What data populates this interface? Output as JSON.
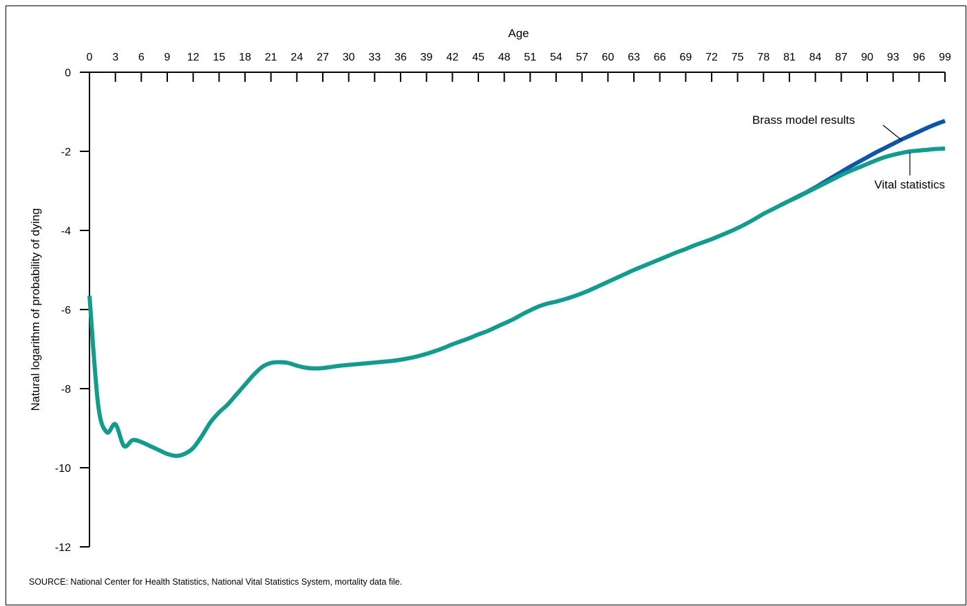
{
  "source_note": "SOURCE: National Center for Health Statistics, National Vital Statistics System, mortality data file.",
  "colors": {
    "brass": "#0d56a6",
    "vital": "#139b8e",
    "axis": "#000000"
  },
  "chart_data": {
    "type": "line",
    "title": "",
    "xlabel": "Age",
    "ylabel": "Natural logarithm of probability of dying",
    "x_axis_position": "top",
    "xlim": [
      0,
      99
    ],
    "ylim": [
      -12,
      0
    ],
    "x_ticks": [
      0,
      3,
      6,
      9,
      12,
      15,
      18,
      21,
      24,
      27,
      30,
      33,
      36,
      39,
      42,
      45,
      48,
      51,
      54,
      57,
      60,
      63,
      66,
      69,
      72,
      75,
      78,
      81,
      84,
      87,
      90,
      93,
      96,
      99
    ],
    "x_tick_labels": [
      "0",
      "3",
      "6",
      "9",
      "12",
      "15",
      "18",
      "21",
      "24",
      "27",
      "30",
      "33",
      "36",
      "39",
      "42",
      "45",
      "48",
      "51",
      "54",
      "57",
      "60",
      "63",
      "66",
      "69",
      "72",
      "75",
      "78",
      "81",
      "84",
      "87",
      "90",
      "93",
      "96",
      "99"
    ],
    "y_ticks": [
      0,
      -2,
      -4,
      -6,
      -8,
      -10,
      -12
    ],
    "y_tick_labels": [
      "0",
      "-2",
      "-4",
      "-6",
      "-8",
      "-10",
      "-12"
    ],
    "grid": false,
    "series": [
      {
        "name": "Vital statistics",
        "color": "#139b8e",
        "points": [
          [
            0,
            -5.65
          ],
          [
            1,
            -8.4
          ],
          [
            2,
            -9.1
          ],
          [
            3,
            -8.9
          ],
          [
            4,
            -9.45
          ],
          [
            5,
            -9.3
          ],
          [
            6,
            -9.35
          ],
          [
            7,
            -9.45
          ],
          [
            8,
            -9.55
          ],
          [
            9,
            -9.65
          ],
          [
            10,
            -9.7
          ],
          [
            11,
            -9.65
          ],
          [
            12,
            -9.5
          ],
          [
            13,
            -9.2
          ],
          [
            14,
            -8.85
          ],
          [
            15,
            -8.6
          ],
          [
            16,
            -8.4
          ],
          [
            17,
            -8.15
          ],
          [
            18,
            -7.9
          ],
          [
            19,
            -7.65
          ],
          [
            20,
            -7.45
          ],
          [
            21,
            -7.35
          ],
          [
            22,
            -7.33
          ],
          [
            23,
            -7.35
          ],
          [
            24,
            -7.42
          ],
          [
            25,
            -7.47
          ],
          [
            26,
            -7.49
          ],
          [
            27,
            -7.48
          ],
          [
            28,
            -7.45
          ],
          [
            29,
            -7.42
          ],
          [
            30,
            -7.4
          ],
          [
            31,
            -7.38
          ],
          [
            32,
            -7.36
          ],
          [
            33,
            -7.34
          ],
          [
            34,
            -7.32
          ],
          [
            35,
            -7.3
          ],
          [
            36,
            -7.27
          ],
          [
            37,
            -7.23
          ],
          [
            38,
            -7.18
          ],
          [
            39,
            -7.12
          ],
          [
            40,
            -7.05
          ],
          [
            41,
            -6.97
          ],
          [
            42,
            -6.88
          ],
          [
            43,
            -6.8
          ],
          [
            44,
            -6.72
          ],
          [
            45,
            -6.63
          ],
          [
            46,
            -6.55
          ],
          [
            47,
            -6.45
          ],
          [
            48,
            -6.35
          ],
          [
            49,
            -6.25
          ],
          [
            50,
            -6.13
          ],
          [
            51,
            -6.02
          ],
          [
            52,
            -5.92
          ],
          [
            53,
            -5.85
          ],
          [
            54,
            -5.8
          ],
          [
            55,
            -5.74
          ],
          [
            56,
            -5.67
          ],
          [
            57,
            -5.59
          ],
          [
            58,
            -5.5
          ],
          [
            59,
            -5.4
          ],
          [
            60,
            -5.3
          ],
          [
            61,
            -5.2
          ],
          [
            62,
            -5.1
          ],
          [
            63,
            -5.0
          ],
          [
            64,
            -4.91
          ],
          [
            65,
            -4.82
          ],
          [
            66,
            -4.73
          ],
          [
            67,
            -4.64
          ],
          [
            68,
            -4.55
          ],
          [
            69,
            -4.47
          ],
          [
            70,
            -4.38
          ],
          [
            71,
            -4.3
          ],
          [
            72,
            -4.22
          ],
          [
            73,
            -4.13
          ],
          [
            74,
            -4.04
          ],
          [
            75,
            -3.94
          ],
          [
            76,
            -3.83
          ],
          [
            77,
            -3.71
          ],
          [
            78,
            -3.58
          ],
          [
            79,
            -3.47
          ],
          [
            80,
            -3.36
          ],
          [
            81,
            -3.25
          ],
          [
            82,
            -3.15
          ],
          [
            83,
            -3.04
          ],
          [
            84,
            -2.93
          ],
          [
            85,
            -2.82
          ],
          [
            86,
            -2.71
          ],
          [
            87,
            -2.6
          ],
          [
            88,
            -2.5
          ],
          [
            89,
            -2.41
          ],
          [
            90,
            -2.32
          ],
          [
            91,
            -2.23
          ],
          [
            92,
            -2.15
          ],
          [
            93,
            -2.09
          ],
          [
            94,
            -2.04
          ],
          [
            95,
            -2.0
          ],
          [
            96,
            -1.98
          ],
          [
            97,
            -1.96
          ],
          [
            98,
            -1.94
          ],
          [
            99,
            -1.93
          ]
        ]
      },
      {
        "name": "Brass model results",
        "color": "#0d56a6",
        "points": [
          [
            80,
            -3.36
          ],
          [
            81,
            -3.25
          ],
          [
            82,
            -3.14
          ],
          [
            83,
            -3.03
          ],
          [
            84,
            -2.91
          ],
          [
            85,
            -2.78
          ],
          [
            86,
            -2.65
          ],
          [
            87,
            -2.52
          ],
          [
            88,
            -2.39
          ],
          [
            89,
            -2.27
          ],
          [
            90,
            -2.15
          ],
          [
            91,
            -2.03
          ],
          [
            92,
            -1.92
          ],
          [
            93,
            -1.81
          ],
          [
            94,
            -1.7
          ],
          [
            95,
            -1.6
          ],
          [
            96,
            -1.5
          ],
          [
            97,
            -1.4
          ],
          [
            98,
            -1.31
          ],
          [
            99,
            -1.23
          ]
        ]
      }
    ],
    "annotations": [
      {
        "text": "Brass model results",
        "series": "Brass model results"
      },
      {
        "text": "Vital statistics",
        "series": "Vital statistics"
      }
    ]
  }
}
